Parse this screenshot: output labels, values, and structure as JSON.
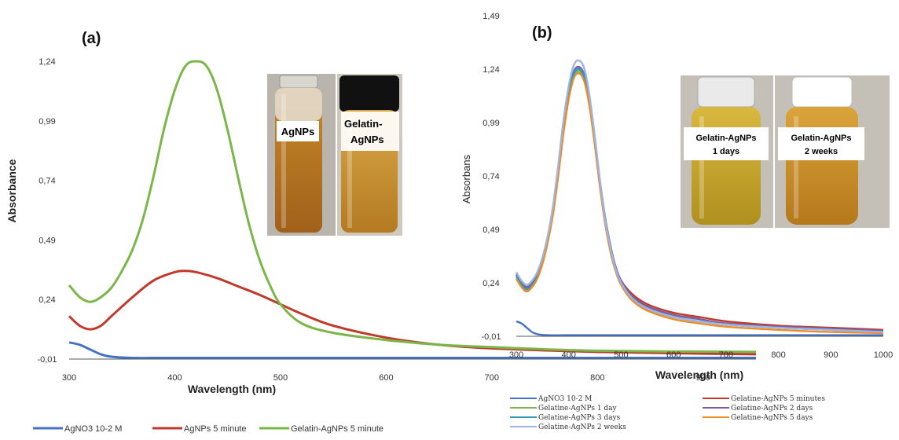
{
  "chart_data": [
    {
      "id": "a",
      "type": "line",
      "panel_label": "(a)",
      "xlabel": "Wavelength (nm)",
      "ylabel": "Absorbance",
      "xlim": [
        300,
        950
      ],
      "ylim": [
        -0.01,
        1.24
      ],
      "xticks": [
        300,
        400,
        500,
        600,
        700,
        800,
        900
      ],
      "yticks": [
        -0.01,
        0.24,
        0.49,
        0.74,
        0.99,
        1.24
      ],
      "ytick_labels": [
        "-0,01",
        "0,24",
        "0,49",
        "0,74",
        "0,99",
        "1,24"
      ],
      "grid": false,
      "legend_position": "bottom",
      "photo_labels": [
        "AgNPs",
        "Gelatin-",
        "AgNPs"
      ],
      "series": [
        {
          "name": "AgNO3 10-2 M",
          "color": "#4472c4",
          "x": [
            300,
            310,
            320,
            330,
            340,
            360,
            400,
            500,
            600,
            700,
            800,
            950
          ],
          "y": [
            0.06,
            0.05,
            0.03,
            0.01,
            0.0,
            -0.005,
            -0.005,
            -0.005,
            -0.005,
            -0.005,
            -0.005,
            -0.005
          ]
        },
        {
          "name": "AgNPs 5 minute",
          "color": "#c0392b",
          "x": [
            300,
            310,
            320,
            330,
            340,
            360,
            380,
            400,
            410,
            420,
            440,
            460,
            480,
            500,
            520,
            550,
            600,
            650,
            700,
            800,
            950
          ],
          "y": [
            0.17,
            0.13,
            0.115,
            0.13,
            0.17,
            0.25,
            0.32,
            0.355,
            0.36,
            0.355,
            0.33,
            0.295,
            0.26,
            0.22,
            0.18,
            0.13,
            0.08,
            0.05,
            0.035,
            0.02,
            0.01
          ]
        },
        {
          "name": "Gelatin-AgNPs 5 minute",
          "color": "#7ab648",
          "x": [
            300,
            310,
            320,
            330,
            340,
            350,
            360,
            370,
            380,
            390,
            400,
            410,
            420,
            430,
            440,
            450,
            460,
            470,
            480,
            490,
            500,
            520,
            550,
            600,
            650,
            700,
            800,
            950
          ],
          "y": [
            0.3,
            0.25,
            0.23,
            0.25,
            0.29,
            0.36,
            0.45,
            0.58,
            0.76,
            0.96,
            1.12,
            1.22,
            1.24,
            1.22,
            1.12,
            0.95,
            0.75,
            0.56,
            0.41,
            0.3,
            0.22,
            0.14,
            0.1,
            0.07,
            0.05,
            0.04,
            0.025,
            0.02
          ]
        }
      ]
    },
    {
      "id": "b",
      "type": "line",
      "panel_label": "(b)",
      "xlabel": "Wavelength (nm)",
      "ylabel": "Absorbans",
      "xlim": [
        300,
        1000
      ],
      "ylim": [
        -0.01,
        1.49
      ],
      "xticks": [
        300,
        400,
        500,
        600,
        700,
        800,
        900,
        1000
      ],
      "yticks": [
        -0.01,
        0.24,
        0.49,
        0.74,
        0.99,
        1.24,
        1.49
      ],
      "ytick_labels": [
        "-0,01",
        "0,24",
        "0,49",
        "0,74",
        "0,99",
        "1,24",
        "1,49"
      ],
      "grid": false,
      "legend_position": "bottom",
      "photo_labels": [
        "Gelatin-AgNPs",
        "1 days",
        "Gelatin-AgNPs",
        "2 weeks"
      ],
      "series": [
        {
          "name": "AgNO3 10-2 M",
          "color": "#4472c4",
          "x": [
            300,
            310,
            320,
            330,
            340,
            360,
            400,
            500,
            700,
            1000
          ],
          "y": [
            0.06,
            0.05,
            0.03,
            0.01,
            0.0,
            -0.005,
            -0.005,
            -0.005,
            -0.005,
            -0.005
          ]
        },
        {
          "name": "Gelatine-AgNPs 5 minutes",
          "color": "#c0392b",
          "x": [
            300,
            310,
            320,
            330,
            340,
            350,
            360,
            370,
            380,
            390,
            400,
            410,
            420,
            430,
            440,
            450,
            460,
            470,
            480,
            490,
            500,
            520,
            550,
            600,
            650,
            700,
            800,
            900,
            1000
          ],
          "y": [
            0.28,
            0.24,
            0.22,
            0.24,
            0.28,
            0.35,
            0.45,
            0.58,
            0.76,
            0.96,
            1.12,
            1.22,
            1.24,
            1.2,
            1.08,
            0.9,
            0.7,
            0.53,
            0.4,
            0.31,
            0.25,
            0.19,
            0.14,
            0.1,
            0.08,
            0.06,
            0.04,
            0.03,
            0.02
          ]
        },
        {
          "name": "Gelatine-AgNPs 1 day",
          "color": "#7ab648",
          "x": [
            300,
            310,
            320,
            330,
            340,
            350,
            360,
            370,
            380,
            390,
            400,
            410,
            420,
            430,
            440,
            450,
            460,
            470,
            480,
            490,
            500,
            520,
            550,
            600,
            650,
            700,
            800,
            900,
            1000
          ],
          "y": [
            0.27,
            0.23,
            0.21,
            0.23,
            0.27,
            0.34,
            0.44,
            0.57,
            0.75,
            0.95,
            1.11,
            1.21,
            1.23,
            1.19,
            1.07,
            0.89,
            0.69,
            0.52,
            0.39,
            0.3,
            0.24,
            0.18,
            0.13,
            0.09,
            0.07,
            0.05,
            0.035,
            0.025,
            0.015
          ]
        },
        {
          "name": "Gelatine-AgNPs 2 days",
          "color": "#7d5ba6",
          "x": [
            300,
            310,
            320,
            330,
            340,
            350,
            360,
            370,
            380,
            390,
            400,
            410,
            420,
            430,
            440,
            450,
            460,
            470,
            480,
            490,
            500,
            520,
            550,
            600,
            650,
            700,
            800,
            900,
            1000
          ],
          "y": [
            0.28,
            0.24,
            0.22,
            0.24,
            0.28,
            0.35,
            0.45,
            0.58,
            0.76,
            0.97,
            1.13,
            1.23,
            1.25,
            1.21,
            1.09,
            0.91,
            0.71,
            0.54,
            0.41,
            0.31,
            0.25,
            0.18,
            0.13,
            0.09,
            0.07,
            0.05,
            0.035,
            0.025,
            0.015
          ]
        },
        {
          "name": "Gelatine-AgNPs 3 days",
          "color": "#2e9bb8",
          "x": [
            300,
            310,
            320,
            330,
            340,
            350,
            360,
            370,
            380,
            390,
            400,
            410,
            420,
            430,
            440,
            450,
            460,
            470,
            480,
            490,
            500,
            520,
            550,
            600,
            650,
            700,
            800,
            900,
            1000
          ],
          "y": [
            0.27,
            0.23,
            0.21,
            0.23,
            0.27,
            0.34,
            0.44,
            0.57,
            0.75,
            0.96,
            1.12,
            1.22,
            1.24,
            1.2,
            1.08,
            0.9,
            0.7,
            0.53,
            0.4,
            0.3,
            0.24,
            0.17,
            0.12,
            0.08,
            0.06,
            0.045,
            0.03,
            0.02,
            0.01
          ]
        },
        {
          "name": "Gelatine-AgNPs 5 days",
          "color": "#f08a24",
          "x": [
            300,
            310,
            320,
            330,
            340,
            350,
            360,
            370,
            380,
            390,
            400,
            410,
            420,
            430,
            440,
            450,
            460,
            470,
            480,
            490,
            500,
            520,
            550,
            600,
            650,
            700,
            800,
            900,
            1000
          ],
          "y": [
            0.26,
            0.22,
            0.2,
            0.22,
            0.26,
            0.33,
            0.43,
            0.56,
            0.74,
            0.94,
            1.1,
            1.2,
            1.22,
            1.18,
            1.06,
            0.88,
            0.68,
            0.51,
            0.38,
            0.29,
            0.23,
            0.16,
            0.11,
            0.07,
            0.05,
            0.035,
            0.02,
            0.01,
            0.005
          ]
        },
        {
          "name": "Gelatine-AgNPs 2 weeks",
          "color": "#9bb5e4",
          "x": [
            300,
            310,
            320,
            330,
            340,
            350,
            360,
            370,
            380,
            390,
            400,
            410,
            420,
            430,
            440,
            450,
            460,
            470,
            480,
            490,
            500,
            520,
            550,
            600,
            650,
            700,
            800,
            900,
            1000
          ],
          "y": [
            0.29,
            0.25,
            0.23,
            0.25,
            0.29,
            0.36,
            0.46,
            0.6,
            0.79,
            1.0,
            1.16,
            1.26,
            1.28,
            1.24,
            1.11,
            0.92,
            0.71,
            0.53,
            0.4,
            0.3,
            0.24,
            0.17,
            0.12,
            0.08,
            0.06,
            0.045,
            0.03,
            0.02,
            0.01
          ]
        }
      ]
    }
  ]
}
